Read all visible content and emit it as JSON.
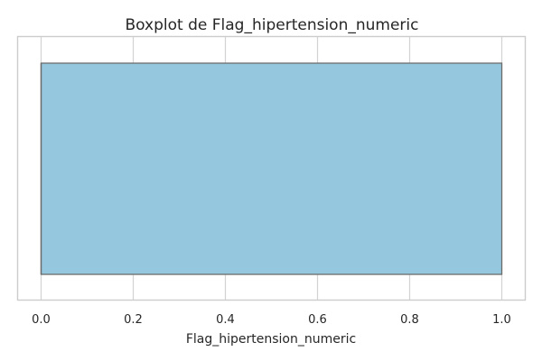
{
  "chart_data": {
    "type": "boxplot",
    "title": "Boxplot de Flag_hipertension_numeric",
    "xlabel": "Flag_hipertension_numeric",
    "ylabel": "",
    "xlim": [
      -0.05,
      1.05
    ],
    "xticks": [
      0.0,
      0.2,
      0.4,
      0.6,
      0.8,
      1.0
    ],
    "xtick_labels": [
      "0.0",
      "0.2",
      "0.4",
      "0.6",
      "0.8",
      "1.0"
    ],
    "grid": true,
    "box": {
      "min": 0.0,
      "q1": 0.0,
      "median": 0.0,
      "q3": 1.0,
      "max": 1.0
    },
    "colors": {
      "box_fill": "#95c8df",
      "box_edge": "#6b6b6b",
      "grid": "#d3d3d3",
      "frame": "#cccccc",
      "text": "#262626"
    }
  }
}
